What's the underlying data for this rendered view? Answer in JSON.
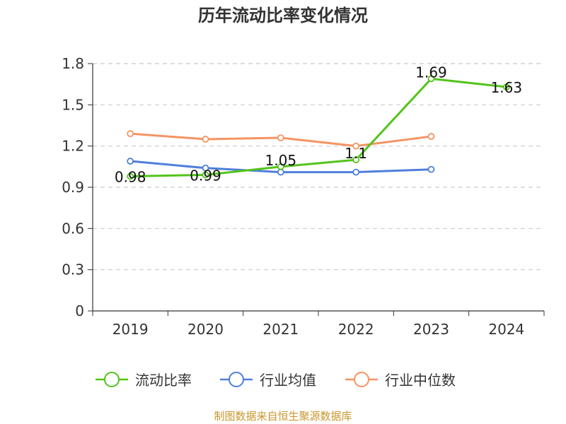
{
  "source": "制图数据来自恒生聚源数据库",
  "chart_data": {
    "type": "line",
    "title": "历年流动比率变化情况",
    "xlabel": "",
    "ylabel": "",
    "categories": [
      "2019",
      "2020",
      "2021",
      "2022",
      "2023",
      "2024"
    ],
    "ylim": [
      0,
      1.8
    ],
    "yticks": [
      0,
      0.3,
      0.6,
      0.9,
      1.2,
      1.5,
      1.8
    ],
    "ytick_labels": [
      "0",
      "0.3",
      "0.6",
      "0.9",
      "1.2",
      "1.5",
      "1.8"
    ],
    "grid": "horizontal-dashed",
    "legend_position": "bottom",
    "series": [
      {
        "name": "流动比率",
        "color": "#52c41a",
        "values": [
          0.98,
          0.99,
          1.05,
          1.1,
          1.69,
          1.63
        ],
        "labels": [
          "0.98",
          "0.99",
          "1.05",
          "1.1",
          "1.69",
          "1.63"
        ]
      },
      {
        "name": "行业均值",
        "color": "#4f7fdb",
        "values": [
          1.09,
          1.04,
          1.01,
          1.01,
          1.03,
          null
        ]
      },
      {
        "name": "行业中位数",
        "color": "#f59462",
        "values": [
          1.29,
          1.25,
          1.26,
          1.2,
          1.27,
          null
        ]
      }
    ]
  }
}
